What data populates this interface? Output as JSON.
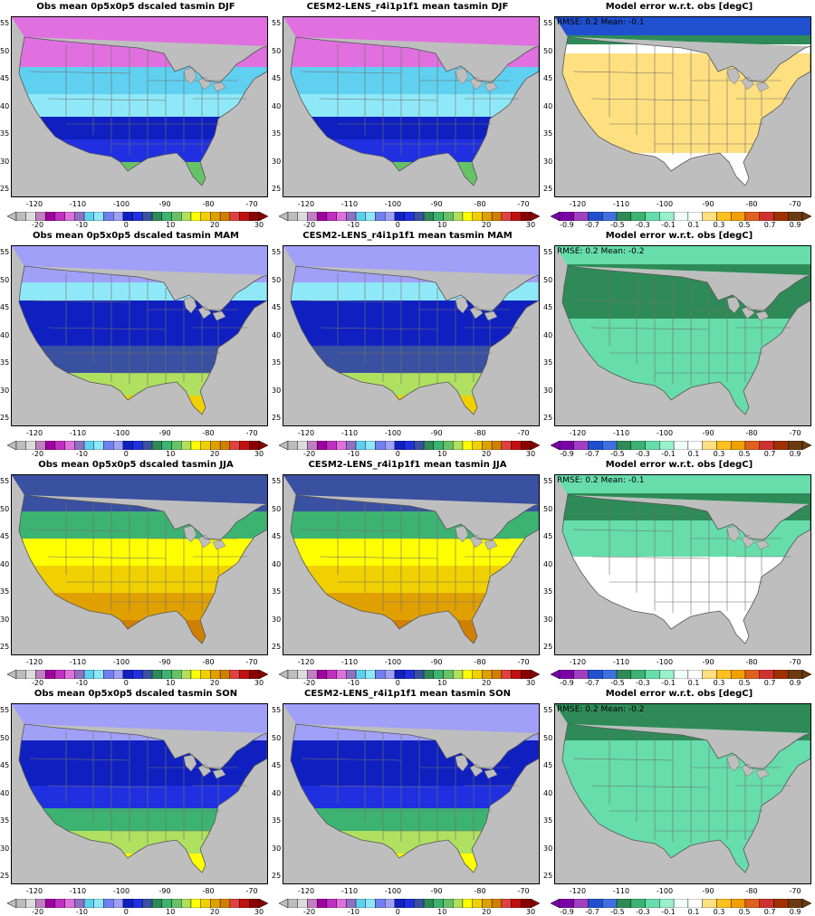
{
  "rows": [
    {
      "season": "DJF",
      "titles": [
        "Obs mean 0p5x0p5 dscaled tasmin DJF",
        "CESM2-LENS_r4i1p1f1 mean tasmin DJF",
        "Model error w.r.t. obs [degC]"
      ],
      "stats": "RMSE: 0.2   Mean: -0.1"
    },
    {
      "season": "MAM",
      "titles": [
        "Obs mean 0p5x0p5 dscaled tasmin MAM",
        "CESM2-LENS_r4i1p1f1 mean tasmin MAM",
        "Model error w.r.t. obs [degC]"
      ],
      "stats": "RMSE: 0.2   Mean: -0.2"
    },
    {
      "season": "JJA",
      "titles": [
        "Obs mean 0p5x0p5 dscaled tasmin JJA",
        "CESM2-LENS_r4i1p1f1 mean tasmin JJA",
        "Model error w.r.t. obs [degC]"
      ],
      "stats": "RMSE: 0.2   Mean: -0.1"
    },
    {
      "season": "SON",
      "titles": [
        "Obs mean 0p5x0p5 dscaled tasmin SON",
        "CESM2-LENS_r4i1p1f1 mean tasmin SON",
        "Model error w.r.t. obs [degC]"
      ],
      "stats": "RMSE: 0.2   Mean: -0.2"
    }
  ],
  "axes": {
    "lat_ticks": [
      "55",
      "50",
      "45",
      "40",
      "35",
      "30",
      "25"
    ],
    "lon_ticks": [
      "-120",
      "-110",
      "-100",
      "-90",
      "-80",
      "-70"
    ]
  },
  "temp_colorbar": {
    "labels": [
      "-20",
      "-10",
      "0",
      "10",
      "20",
      "30"
    ],
    "colors": [
      "#bdbdbd",
      "#dcdcdc",
      "#c080c0",
      "#a000a0",
      "#c030c0",
      "#e070e0",
      "#9070c0",
      "#5fd0f0",
      "#8fe8f8",
      "#7080f0",
      "#a0a0f8",
      "#1020c0",
      "#2030e0",
      "#3a50a0",
      "#2e8b57",
      "#3cb371",
      "#66c266",
      "#b0e060",
      "#ffff00",
      "#f0d000",
      "#e0a000",
      "#d08000",
      "#e04040",
      "#c01010",
      "#8b0000"
    ]
  },
  "diff_colorbar": {
    "labels": [
      "-0.9",
      "-0.7",
      "-0.5",
      "-0.3",
      "-0.1",
      "0.1",
      "0.3",
      "0.5",
      "0.7",
      "0.9"
    ],
    "colors": [
      "#7a00a8",
      "#a040c0",
      "#2050d0",
      "#4070e0",
      "#2e8b57",
      "#3cb371",
      "#66ddaa",
      "#99f0cc",
      "#f0fff8",
      "#ffffff",
      "#ffe080",
      "#ffc020",
      "#f0a000",
      "#e06020",
      "#d03030",
      "#a03000",
      "#6b3a10"
    ]
  },
  "colors": {
    "land_mask": "#bebebe",
    "border_lines": "#707070"
  }
}
